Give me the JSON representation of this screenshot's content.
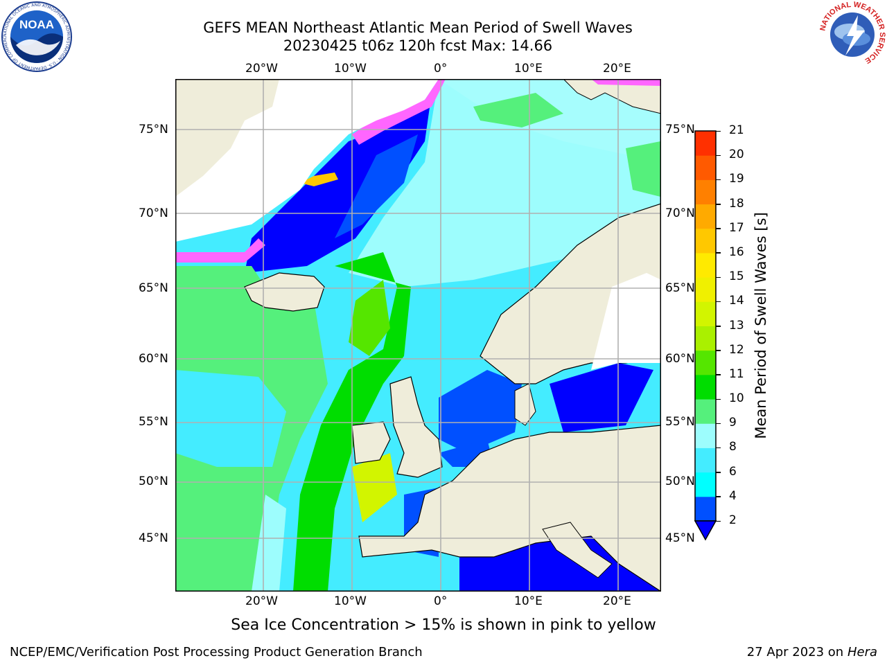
{
  "header": {
    "title_line1": "GEFS MEAN Northeast Atlantic Mean Period of Swell Waves",
    "title_line2": "20230425 t06z 120h fcst   Max: 14.66"
  },
  "logos": {
    "left": {
      "name": "NOAA",
      "ring_text": "NATIONAL OCEANIC AND ATMOSPHERIC ADMINISTRATION · U.S. DEPARTMENT OF COMMERCE"
    },
    "right": {
      "name": "NATIONAL WEATHER SERVICE"
    }
  },
  "map": {
    "lon_labels": [
      "20°W",
      "10°W",
      "0°",
      "10°E",
      "20°E"
    ],
    "lat_labels": [
      "75°N",
      "70°N",
      "65°N",
      "60°N",
      "55°N",
      "50°N",
      "45°N"
    ],
    "colors": {
      "land": "#efedda",
      "ice_white": "#ffffff",
      "grid": "#b0b0b0"
    }
  },
  "colorbar": {
    "label": "Mean Period of Swell Waves [s]",
    "ticks": [
      "2",
      "4",
      "6",
      "8",
      "9",
      "10",
      "11",
      "12",
      "13",
      "14",
      "15",
      "16",
      "17",
      "18",
      "19",
      "20",
      "21"
    ],
    "colors": [
      "#0050ff",
      "#00ffff",
      "#44ecff",
      "#9dfdfd",
      "#55f07c",
      "#00dd00",
      "#55e600",
      "#aaf000",
      "#d2f500",
      "#f0f000",
      "#ffea00",
      "#ffc800",
      "#ffaa00",
      "#ff8000",
      "#ff5a00",
      "#ff3000",
      "#ff0000"
    ],
    "extend_color": "#0000ff"
  },
  "notes": {
    "sea_ice": "Sea Ice Concentration > 15% is shown in pink to yellow"
  },
  "footer": {
    "left": "NCEP/EMC/Verification Post Processing Product Generation Branch",
    "right_date": "27 Apr 2023 on ",
    "right_machine": "Hera"
  }
}
